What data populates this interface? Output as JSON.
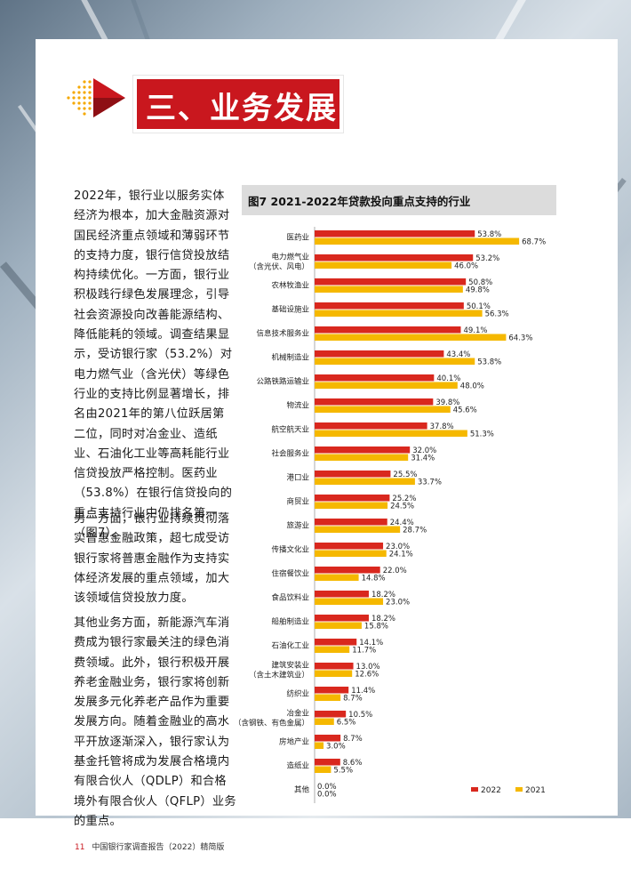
{
  "section_title": "三、业务发展",
  "paragraphs": [
    "2022年，银行业以服务实体经济为根本，加大金融资源对国民经济重点领域和薄弱环节的支持力度，银行信贷投放结构持续优化。一方面，银行业积极践行绿色发展理念，引导社会资源投向改善能源结构、降低能耗的领域。调查结果显示，受访银行家（53.2%）对电力燃气业（含光伏）等绿色行业的支持比例显著增长，排名由2021年的第八位跃居第二位，同时对冶金业、造纸业、石油化工业等高耗能行业信贷投放严格控制。医药业（53.8%）在银行信贷投向的重点支持行业中仍排名第一（图7）。",
    "另一方面，银行业持续贯彻落实普惠金融政策，超七成受访银行家将普惠金融作为支持实体经济发展的重点领域，加大该领域信贷投放力度。",
    "其他业务方面，新能源汽车消费成为银行家最关注的绿色消费领域。此外，银行积极开展养老金融业务，银行家将创新发展多元化养老产品作为重要发展方向。随着金融业的高水平开放逐渐深入，银行家认为基金托管将成为发展合格境内有限合伙人（QDLP）和合格境外有限合伙人（QFLP）业务的重点。"
  ],
  "chart_title": "图7  2021-2022年贷款投向重点支持的行业",
  "chart_data": {
    "type": "bar",
    "orientation": "horizontal",
    "title": "图7  2021-2022年贷款投向重点支持的行业",
    "categories": [
      [
        "医药业"
      ],
      [
        "电力燃气业",
        "（含光伏、风电）"
      ],
      [
        "农林牧渔业"
      ],
      [
        "基础设施业"
      ],
      [
        "信息技术服务业"
      ],
      [
        "机械制造业"
      ],
      [
        "公路铁路运输业"
      ],
      [
        "物流业"
      ],
      [
        "航空航天业"
      ],
      [
        "社会服务业"
      ],
      [
        "港口业"
      ],
      [
        "商贸业"
      ],
      [
        "旅游业"
      ],
      [
        "传播文化业"
      ],
      [
        "住宿餐饮业"
      ],
      [
        "食品饮料业"
      ],
      [
        "船舶制造业"
      ],
      [
        "石油化工业"
      ],
      [
        "建筑安装业",
        "（含土木建筑业）"
      ],
      [
        "纺织业"
      ],
      [
        "冶金业",
        "（含钢铁、有色金属）"
      ],
      [
        "房地产业"
      ],
      [
        "造纸业"
      ],
      [
        "其他"
      ]
    ],
    "series": [
      {
        "name": "2022",
        "color": "#d9281e",
        "values": [
          53.8,
          53.2,
          50.8,
          50.1,
          49.1,
          43.4,
          40.1,
          39.8,
          37.8,
          32.0,
          25.5,
          25.2,
          24.4,
          23.0,
          22.0,
          18.2,
          18.2,
          14.1,
          13.0,
          11.4,
          10.5,
          8.7,
          8.6,
          0.0
        ]
      },
      {
        "name": "2021",
        "color": "#f5b800",
        "values": [
          68.7,
          46.0,
          49.8,
          56.3,
          64.3,
          53.8,
          48.0,
          45.6,
          51.3,
          31.4,
          33.7,
          24.5,
          28.7,
          24.1,
          14.8,
          23.0,
          15.8,
          11.7,
          12.6,
          8.7,
          6.5,
          3.0,
          5.5,
          0.0
        ]
      }
    ],
    "value_suffix": "%",
    "legend_position": "bottom-right"
  },
  "footer": {
    "page": "11",
    "text": "中国银行家调查报告（2022）精简版"
  }
}
